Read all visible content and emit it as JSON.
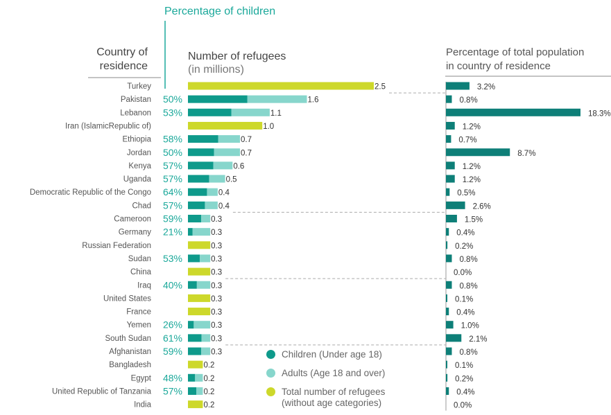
{
  "titles": {
    "percentage_of_children": "Percentage of children",
    "country_of_residence": "Country of residence",
    "number_of_refugees": "Number of refugees",
    "number_of_refugees_sub": "(in millions)",
    "percentage_of_population_line1": "Percentage of total population",
    "percentage_of_population_line2": "in country of residence"
  },
  "legend": [
    {
      "label": "Children (Under age 18)",
      "color": "#0e9a8b"
    },
    {
      "label": "Adults (Age 18 and over)",
      "color": "#87d6cc"
    },
    {
      "label": "Total number of refugees (without age categories)",
      "color": "#cdd82b"
    }
  ],
  "colors": {
    "children": "#0e9a8b",
    "adults": "#87d6cc",
    "total": "#cdd82b",
    "population": "#0e7f78",
    "accent_text": "#1aa89a"
  },
  "chart_data": {
    "type": "bar",
    "categories": [
      "Turkey",
      "Pakistan",
      "Lebanon",
      "Iran (IslamicRepublic of)",
      "Ethiopia",
      "Jordan",
      "Kenya",
      "Uganda",
      "Democratic Republic of the Congo",
      "Chad",
      "Cameroon",
      "Germany",
      "Russian Federation",
      "Sudan",
      "China",
      "Iraq",
      "United States",
      "France",
      "Yemen",
      "South Sudan",
      "Afghanistan",
      "Bangladesh",
      "Egypt",
      "United Republic of Tanzania",
      "India"
    ],
    "children_percent_labels": [
      "",
      "50%",
      "53%",
      "",
      "58%",
      "50%",
      "57%",
      "57%",
      "64%",
      "57%",
      "59%",
      "21%",
      "",
      "53%",
      "",
      "40%",
      "",
      "",
      "26%",
      "61%",
      "59%",
      "",
      "48%",
      "57%",
      ""
    ],
    "children_share": [
      null,
      0.5,
      0.53,
      null,
      0.58,
      0.5,
      0.57,
      0.57,
      0.64,
      0.57,
      0.59,
      0.21,
      null,
      0.53,
      null,
      0.4,
      null,
      null,
      0.26,
      0.61,
      0.59,
      null,
      0.48,
      0.57,
      null
    ],
    "refugees_millions": [
      2.5,
      1.6,
      1.1,
      1.0,
      0.7,
      0.7,
      0.6,
      0.5,
      0.4,
      0.4,
      0.3,
      0.3,
      0.3,
      0.3,
      0.3,
      0.3,
      0.3,
      0.3,
      0.3,
      0.3,
      0.3,
      0.2,
      0.2,
      0.2,
      0.2
    ],
    "refugee_labels": [
      "2.5",
      "1.6",
      "1.1",
      "1.0",
      "0.7",
      "0.7",
      "0.6",
      "0.5",
      "0.4",
      "0.4",
      "0.3",
      "0.3",
      "0.3",
      "0.3",
      "0.3",
      "0.3",
      "0.3",
      "0.3",
      "0.3",
      "0.3",
      "0.3",
      "0.2",
      "0.2",
      "0.2",
      "0.2"
    ],
    "population_percent": [
      3.2,
      0.8,
      18.3,
      1.2,
      0.7,
      8.7,
      1.2,
      1.2,
      0.5,
      2.6,
      1.5,
      0.4,
      0.2,
      0.8,
      0.0,
      0.8,
      0.1,
      0.4,
      1.0,
      2.1,
      0.8,
      0.1,
      0.2,
      0.4,
      0.0
    ],
    "population_labels": [
      "3.2%",
      "0.8%",
      "18.3%",
      "1.2%",
      "0.7%",
      "8.7%",
      "1.2%",
      "1.2%",
      "0.5%",
      "2.6%",
      "1.5%",
      "0.4%",
      "0.2%",
      "0.8%",
      "0.0%",
      "0.8%",
      "0.1%",
      "0.4%",
      "1.0%",
      "2.1%",
      "0.8%",
      "0.1%",
      "0.2%",
      "0.4%",
      "0.0%"
    ],
    "dashed_separator_after_rows": [
      0,
      9,
      14,
      19
    ],
    "refugees_axis_max": 2.5,
    "population_axis_max": 18.3
  }
}
